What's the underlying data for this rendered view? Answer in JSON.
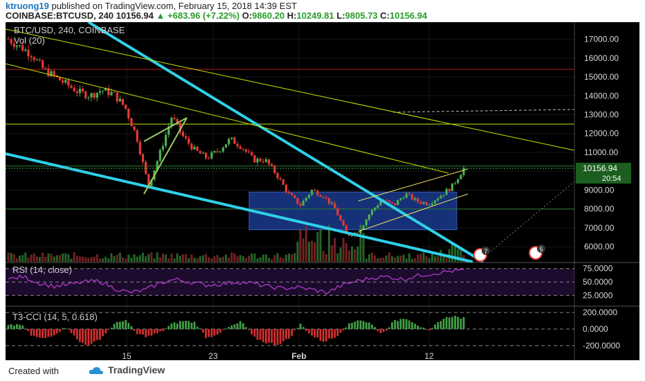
{
  "header": {
    "author": "ktruong19",
    "published_text": "published on TradingView.com, February 15, 2018 14:39 EST",
    "symbol": "COINBASE:BTCUSD, 240",
    "last": "10156.94",
    "change": "+683.96 (+7.22%)",
    "ohlc_open_label": "O:",
    "ohlc_open": "9860.20",
    "ohlc_high_label": "H:",
    "ohlc_high": "10249.81",
    "ohlc_low_label": "L:",
    "ohlc_low": "9805.73",
    "ohlc_close_label": "C:",
    "ohlc_close": "10156.94"
  },
  "footer": {
    "created_with": "Created with",
    "brand": "TradingView"
  },
  "chart_data": {
    "type": "candlestick",
    "title": "BTC/USD, 240, COINBASE",
    "subtitle": "Vol (20)",
    "price_axis": {
      "ylim": [
        5200,
        17900
      ],
      "ticks": [
        "17000.00",
        "16000.00",
        "15000.00",
        "14000.00",
        "13000.00",
        "12000.00",
        "11000.00",
        "10000.00",
        "9000.00",
        "8000.00",
        "7000.00",
        "6000.00"
      ],
      "tick_values": [
        17000,
        16000,
        15000,
        14000,
        13000,
        12000,
        11000,
        10000,
        9000,
        8000,
        7000,
        6000
      ],
      "last_price_label": "10156.94",
      "countdown_label": "20:54"
    },
    "x_axis": {
      "ticks": [
        "15",
        "23",
        "Feb",
        "12"
      ]
    },
    "price_path": [
      17000,
      16600,
      16200,
      15400,
      15000,
      14600,
      14200,
      14000,
      14300,
      14100,
      13400,
      11800,
      9200,
      11000,
      12900,
      11800,
      11100,
      10700,
      11100,
      11700,
      11300,
      10600,
      10600,
      9800,
      8800,
      8200,
      9000,
      8700,
      8000,
      6600,
      6800,
      7800,
      8500,
      8200,
      8800,
      8400,
      8300,
      8700,
      9200,
      10156.94
    ],
    "horizontal_levels": [
      {
        "price": 15400,
        "color": "#b71c1c"
      },
      {
        "price": 12500,
        "color": "#c8e600"
      },
      {
        "price": 10280,
        "color": "#2e7d32"
      },
      {
        "price": 8000,
        "color": "#2e7d32"
      }
    ],
    "rectangle": {
      "from_price": 8900,
      "to_price": 6900,
      "color": "#1a3a8c"
    },
    "trendlines_cyan": [
      "descending resistance",
      "descending support"
    ],
    "rsi": {
      "label": "RSI (14, close)",
      "ylim": [
        10,
        85
      ],
      "ticks": [
        "75.0000",
        "50.0000",
        "25.0000"
      ],
      "tick_values": [
        75,
        50,
        25
      ],
      "values": [
        55,
        60,
        48,
        42,
        45,
        50,
        52,
        38,
        30,
        35,
        48,
        55,
        50,
        44,
        46,
        50,
        48,
        42,
        38,
        40,
        36,
        30,
        44,
        52,
        58,
        60,
        55,
        62,
        66,
        70,
        72
      ]
    },
    "cci": {
      "label": "T3-CCI (14, 5, 0.618)",
      "ylim": [
        -260,
        260
      ],
      "ticks": [
        "200.0000",
        "0.0000",
        "-200.0000"
      ],
      "tick_values": [
        200,
        0,
        -200
      ],
      "values": [
        40,
        60,
        -80,
        -120,
        -60,
        30,
        -150,
        -200,
        -100,
        50,
        120,
        -60,
        -90,
        -40,
        60,
        100,
        80,
        -110,
        -50,
        30,
        90,
        -100,
        -160,
        -190,
        -120,
        60,
        -80,
        -150,
        -100,
        40,
        120,
        70,
        -60,
        90,
        140,
        60,
        -40,
        110,
        160,
        130
      ]
    },
    "badges": [
      "7",
      "5"
    ]
  }
}
